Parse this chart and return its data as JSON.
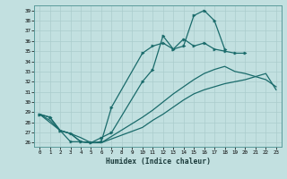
{
  "xlabel": "Humidex (Indice chaleur)",
  "bg_color": "#c2e0e0",
  "line_color": "#1a6b6b",
  "grid_color": "#aacccc",
  "xlim": [
    -0.5,
    23.5
  ],
  "ylim": [
    25.6,
    39.5
  ],
  "yticks": [
    26,
    27,
    28,
    29,
    30,
    31,
    32,
    33,
    34,
    35,
    36,
    37,
    38,
    39
  ],
  "xticks": [
    0,
    1,
    2,
    3,
    4,
    5,
    6,
    7,
    8,
    9,
    10,
    11,
    12,
    13,
    14,
    15,
    16,
    17,
    18,
    19,
    20,
    21,
    22,
    23
  ],
  "curve_top_x": [
    0,
    1,
    2,
    3,
    4,
    5,
    6,
    7,
    10,
    11,
    12,
    13,
    14,
    15,
    16,
    17,
    18
  ],
  "curve_top_y": [
    28.8,
    28.5,
    27.2,
    26.1,
    26.1,
    26.0,
    26.5,
    27.0,
    32.0,
    33.2,
    36.5,
    35.2,
    35.5,
    38.5,
    39.0,
    38.0,
    35.2
  ],
  "curve_mid_x": [
    0,
    1,
    2,
    3,
    4,
    5,
    6,
    7,
    10,
    11,
    12,
    13,
    14,
    15,
    16,
    17,
    18,
    19,
    20
  ],
  "curve_mid_y": [
    28.8,
    28.5,
    27.2,
    26.9,
    26.1,
    26.0,
    26.1,
    29.5,
    34.8,
    35.5,
    35.8,
    35.2,
    36.2,
    35.5,
    35.8,
    35.2,
    35.0,
    34.8,
    34.8
  ],
  "curve_lo1_x": [
    0,
    1,
    2,
    3,
    4,
    5,
    6,
    10,
    11,
    12,
    13,
    14,
    15,
    16,
    17,
    18,
    19,
    20,
    21,
    22,
    23
  ],
  "curve_lo1_y": [
    28.8,
    28.2,
    27.2,
    26.9,
    26.1,
    26.0,
    26.0,
    28.5,
    29.2,
    30.0,
    30.8,
    31.5,
    32.2,
    32.8,
    33.2,
    33.5,
    33.0,
    32.8,
    32.5,
    32.2,
    31.5
  ],
  "curve_lo2_x": [
    0,
    2,
    3,
    4,
    5,
    6,
    10,
    11,
    12,
    13,
    14,
    15,
    16,
    17,
    18,
    19,
    20,
    21,
    22,
    23
  ],
  "curve_lo2_y": [
    28.8,
    27.2,
    26.9,
    26.5,
    26.0,
    26.0,
    27.5,
    28.2,
    28.8,
    29.5,
    30.2,
    30.8,
    31.2,
    31.5,
    31.8,
    32.0,
    32.2,
    32.5,
    32.8,
    31.2
  ]
}
